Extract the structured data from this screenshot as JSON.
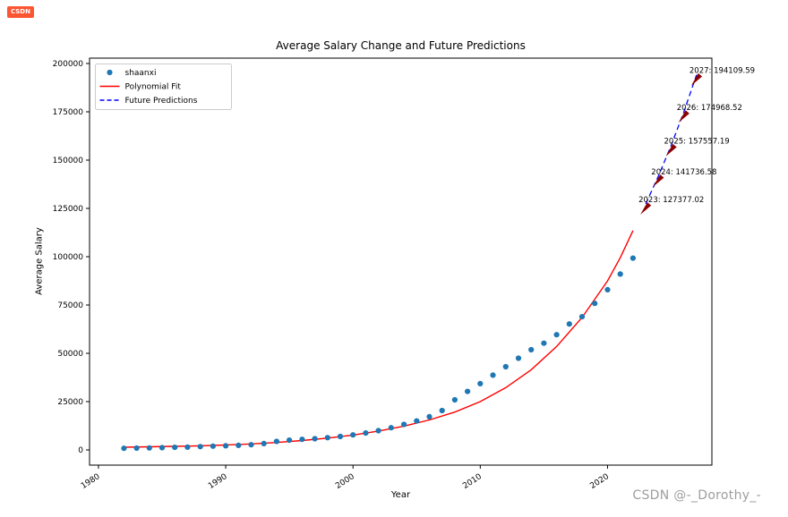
{
  "page": {
    "logo_text": "CSDN",
    "watermark": "CSDN @-_Dorothy_-"
  },
  "chart_data": {
    "type": "scatter",
    "title": "Average Salary Change and Future Predictions",
    "xlabel": "Year",
    "ylabel": "Average Salary",
    "grid": false,
    "legend_position": "upper-left",
    "x_ticks": [
      1980,
      1990,
      2000,
      2010,
      2020
    ],
    "y_ticks": [
      0,
      25000,
      50000,
      75000,
      100000,
      125000,
      150000,
      175000,
      200000
    ],
    "x_range": [
      1979.3,
      2028.2
    ],
    "y_range": [
      -7870,
      202777
    ],
    "legend": [
      {
        "label": "shaanxi",
        "type": "dot",
        "color": "#1f77b4"
      },
      {
        "label": "Polynomial Fit",
        "type": "line",
        "color": "#ff0000"
      },
      {
        "label": "Future Predictions",
        "type": "dashed",
        "color": "#0000ff"
      }
    ],
    "series": {
      "scatter": {
        "name": "shaanxi",
        "color": "#1f77b4",
        "years": [
          1982,
          1983,
          1984,
          1985,
          1986,
          1987,
          1988,
          1989,
          1990,
          1991,
          1992,
          1993,
          1994,
          1995,
          1996,
          1997,
          1998,
          1999,
          2000,
          2001,
          2002,
          2003,
          2004,
          2005,
          2006,
          2007,
          2008,
          2009,
          2010,
          2011,
          2012,
          2013,
          2014,
          2015,
          2016,
          2017,
          2018,
          2019,
          2020,
          2021,
          2022
        ],
        "values": [
          836,
          914,
          1022,
          1166,
          1339,
          1447,
          1718,
          1926,
          2147,
          2363,
          2699,
          3274,
          4382,
          5034,
          5442,
          5784,
          6349,
          6931,
          7774,
          8772,
          9973,
          11461,
          13177,
          15014,
          17163,
          20372,
          25942,
          30293,
          34299,
          38720,
          43073,
          47446,
          51873,
          55213,
          59637,
          65181,
          68931,
          75811,
          82910,
          90996,
          99259
        ]
      },
      "fit": {
        "name": "Polynomial Fit",
        "color": "#ff0000",
        "years": [
          1982,
          1984,
          1986,
          1988,
          1990,
          1992,
          1994,
          1996,
          1998,
          2000,
          2002,
          2004,
          2006,
          2008,
          2010,
          2012,
          2014,
          2016,
          2018,
          2020,
          2021,
          2022
        ],
        "values": [
          1400,
          1600,
          1850,
          2150,
          2550,
          3100,
          3850,
          4850,
          6100,
          7700,
          9750,
          12300,
          15500,
          19600,
          25000,
          32200,
          41500,
          53500,
          68500,
          87500,
          99500,
          113500
        ]
      },
      "predictions": {
        "name": "Future Predictions",
        "color": "#0000ff",
        "arrow_color": "#8b0000",
        "points": [
          {
            "year": 2023,
            "value": 127377.02,
            "label": "2023: 127377.02"
          },
          {
            "year": 2024,
            "value": 141736.58,
            "label": "2024: 141736.58"
          },
          {
            "year": 2025,
            "value": 157557.19,
            "label": "2025: 157557.19"
          },
          {
            "year": 2026,
            "value": 174968.52,
            "label": "2026: 174968.52"
          },
          {
            "year": 2027,
            "value": 194109.59,
            "label": "2027: 194109.59"
          }
        ]
      }
    }
  }
}
